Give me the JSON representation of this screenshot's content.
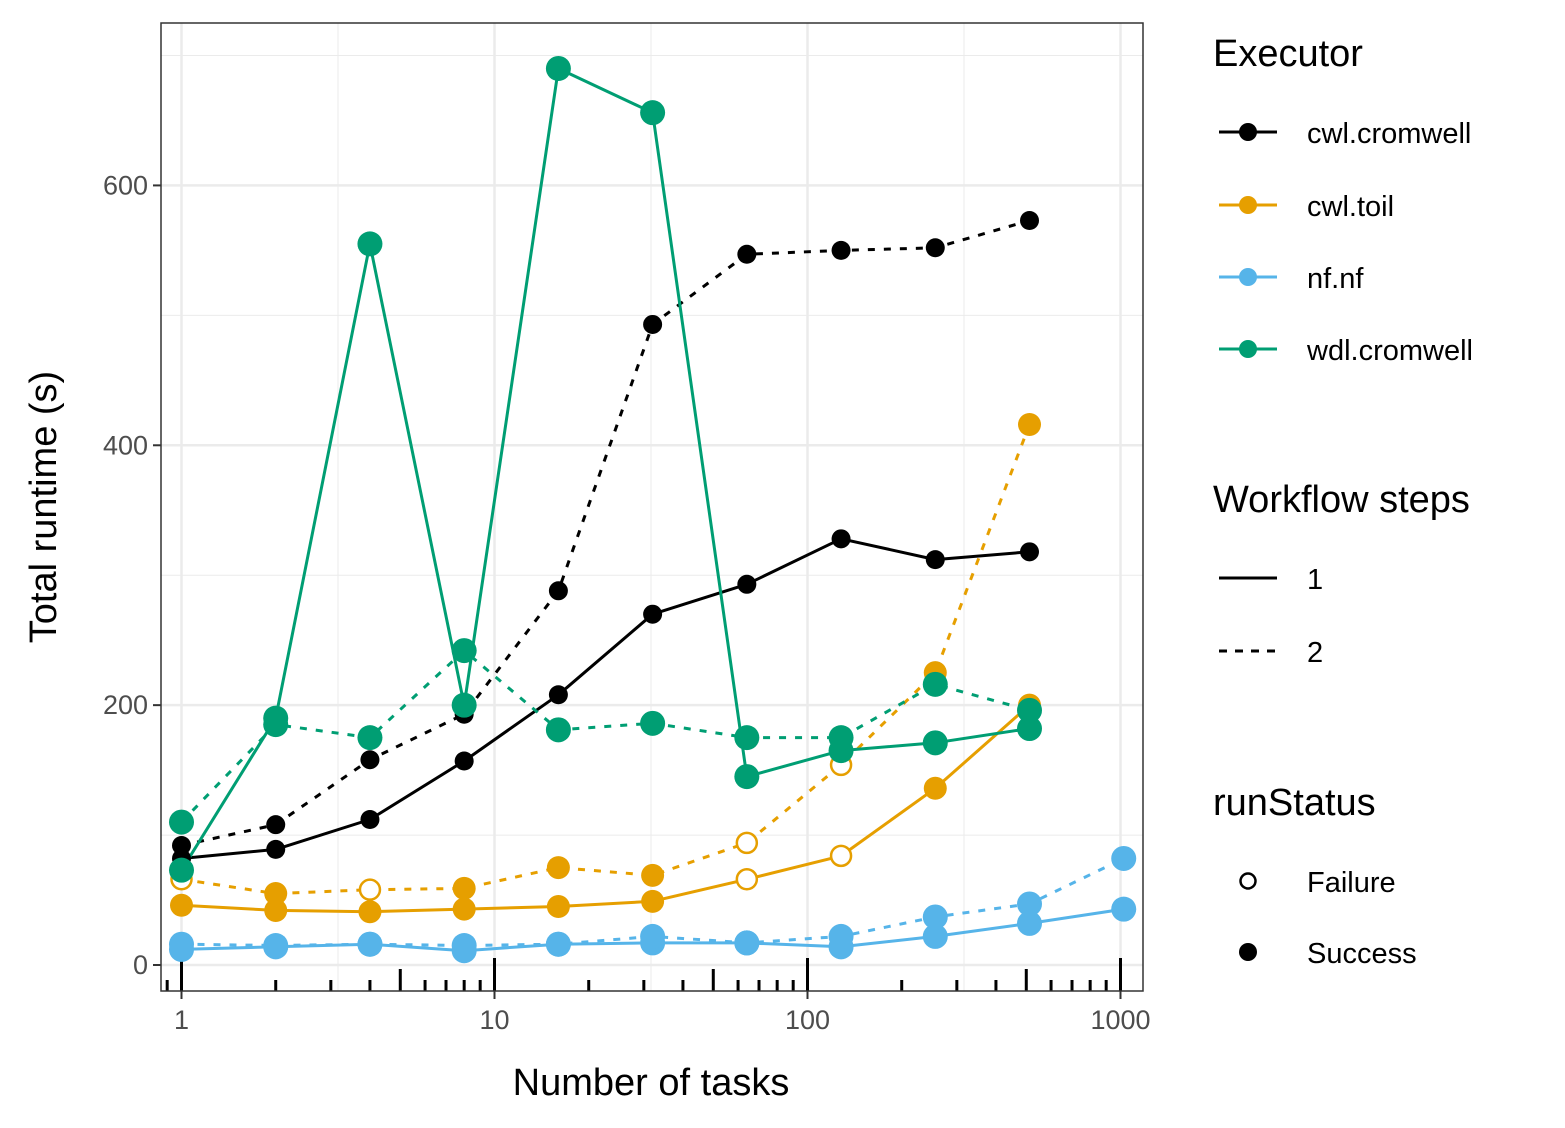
{
  "chart_data": {
    "type": "line",
    "xlabel": "Number of tasks",
    "ylabel": "Total runtime (s)",
    "x_scale": "log10",
    "xlim": [
      0.86,
      1180
    ],
    "ylim": [
      -20,
      725
    ],
    "x_ticks": [
      1,
      10,
      100,
      1000
    ],
    "x_tick_labels": [
      "1",
      "10",
      "100",
      "1000"
    ],
    "y_ticks": [
      0,
      200,
      400,
      600
    ],
    "y_tick_labels": [
      "0",
      "200",
      "400",
      "600"
    ],
    "grid": true,
    "colors": {
      "cwl.cromwell": "#000000",
      "cwl.toil": "#E69F00",
      "nf.nf": "#56B4E9",
      "wdl.cromwell": "#009E73"
    },
    "legend": {
      "placement": "right",
      "executor_title": "Executor",
      "executor_entries": [
        "cwl.cromwell",
        "cwl.toil",
        "nf.nf",
        "wdl.cromwell"
      ],
      "steps_title": "Workflow steps",
      "steps_entries": [
        "1",
        "2"
      ],
      "status_title": "runStatus",
      "status_entries": [
        "Failure",
        "Success"
      ]
    },
    "series": [
      {
        "executor": "cwl.cromwell",
        "steps": "1",
        "x": [
          1,
          2,
          4,
          8,
          16,
          32,
          64,
          128,
          256,
          512
        ],
        "y": [
          82,
          89,
          112,
          157,
          208,
          270,
          293,
          328,
          312,
          318
        ],
        "status": [
          "Success",
          "Success",
          "Success",
          "Success",
          "Success",
          "Success",
          "Success",
          "Success",
          "Success",
          "Success"
        ]
      },
      {
        "executor": "cwl.cromwell",
        "steps": "2",
        "x": [
          1,
          2,
          4,
          8,
          16,
          32,
          64,
          128,
          256,
          512
        ],
        "y": [
          92,
          108,
          158,
          193,
          288,
          493,
          547,
          550,
          552,
          573
        ],
        "status": [
          "Success",
          "Success",
          "Success",
          "Success",
          "Success",
          "Success",
          "Success",
          "Success",
          "Success",
          "Success"
        ]
      },
      {
        "executor": "cwl.toil",
        "steps": "1",
        "x": [
          1,
          2,
          4,
          8,
          16,
          32,
          64,
          128,
          256,
          512
        ],
        "y": [
          46,
          42,
          41,
          43,
          45,
          49,
          66,
          84,
          136,
          200
        ],
        "status": [
          "Success",
          "Success",
          "Success",
          "Success",
          "Success",
          "Success",
          "Failure",
          "Failure",
          "Success",
          "Success"
        ]
      },
      {
        "executor": "cwl.toil",
        "steps": "2",
        "x": [
          1,
          2,
          4,
          8,
          16,
          32,
          64,
          128,
          256,
          512
        ],
        "y": [
          66,
          55,
          58,
          59,
          75,
          69,
          94,
          154,
          225,
          416
        ],
        "status": [
          "Failure",
          "Success",
          "Failure",
          "Success",
          "Success",
          "Success",
          "Failure",
          "Failure",
          "Success",
          "Success"
        ]
      },
      {
        "executor": "nf.nf",
        "steps": "1",
        "x": [
          1,
          2,
          4,
          8,
          16,
          32,
          64,
          128,
          256,
          512,
          1024
        ],
        "y": [
          12,
          14,
          16,
          11,
          16,
          17,
          17,
          14,
          22,
          32,
          43
        ],
        "status": [
          "Success",
          "Success",
          "Success",
          "Success",
          "Success",
          "Success",
          "Success",
          "Success",
          "Success",
          "Success",
          "Success"
        ]
      },
      {
        "executor": "nf.nf",
        "steps": "2",
        "x": [
          1,
          2,
          4,
          8,
          16,
          32,
          64,
          128,
          256,
          512,
          1024
        ],
        "y": [
          16,
          15,
          16,
          15,
          16,
          22,
          17,
          22,
          37,
          47,
          82
        ],
        "status": [
          "Success",
          "Success",
          "Success",
          "Success",
          "Success",
          "Success",
          "Success",
          "Success",
          "Success",
          "Success",
          "Success"
        ]
      },
      {
        "executor": "wdl.cromwell",
        "steps": "1",
        "x": [
          1,
          2,
          4,
          8,
          16,
          32,
          64,
          128,
          256,
          512
        ],
        "y": [
          73,
          190,
          555,
          200,
          690,
          656,
          145,
          165,
          171,
          182
        ],
        "status": [
          "Success",
          "Success",
          "Success",
          "Success",
          "Success",
          "Success",
          "Success",
          "Success",
          "Success",
          "Success"
        ]
      },
      {
        "executor": "wdl.cromwell",
        "steps": "2",
        "x": [
          1,
          2,
          4,
          8,
          16,
          32,
          64,
          128,
          256,
          512
        ],
        "y": [
          110,
          185,
          175,
          242,
          181,
          186,
          175,
          175,
          216,
          196
        ],
        "status": [
          "Success",
          "Success",
          "Success",
          "Success",
          "Success",
          "Success",
          "Success",
          "Success",
          "Success",
          "Success"
        ]
      }
    ]
  }
}
